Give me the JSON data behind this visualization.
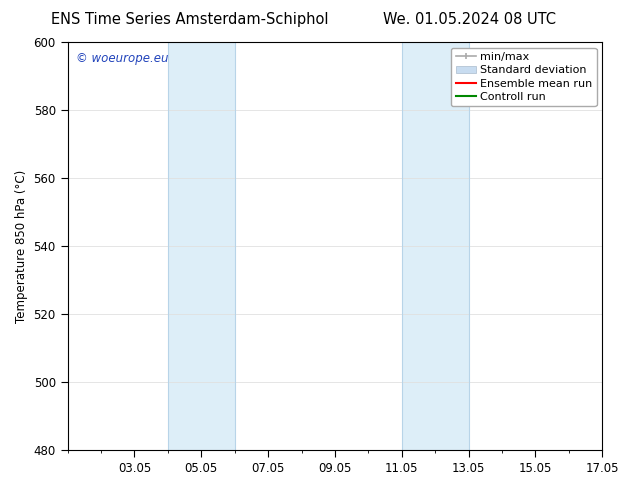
{
  "title_left": "ENS Time Series Amsterdam-Schiphol",
  "title_right": "We. 01.05.2024 08 UTC",
  "ylabel": "Temperature 850 hPa (°C)",
  "ylim": [
    480,
    600
  ],
  "yticks": [
    480,
    500,
    520,
    540,
    560,
    580,
    600
  ],
  "xlim": [
    0,
    16
  ],
  "xtick_labels": [
    "03.05",
    "05.05",
    "07.05",
    "09.05",
    "11.05",
    "13.05",
    "15.05",
    "17.05"
  ],
  "xtick_positions": [
    2,
    4,
    6,
    8,
    10,
    12,
    14,
    16
  ],
  "shaded_bands": [
    {
      "x_start": 3.0,
      "x_end": 5.0
    },
    {
      "x_start": 10.0,
      "x_end": 12.0
    }
  ],
  "band_color": "#ddeef8",
  "band_edge_color": "#b8d4e8",
  "background_color": "#ffffff",
  "watermark_text": "© woeurope.eu",
  "watermark_color": "#2244bb",
  "legend_labels": [
    "min/max",
    "Standard deviation",
    "Ensemble mean run",
    "Controll run"
  ],
  "legend_colors": [
    "#aaaaaa",
    "#c8dcf0",
    "#ff0000",
    "#008800"
  ],
  "title_fontsize": 10.5,
  "tick_fontsize": 8.5,
  "legend_fontsize": 8,
  "ylabel_fontsize": 8.5,
  "watermark_fontsize": 8.5
}
